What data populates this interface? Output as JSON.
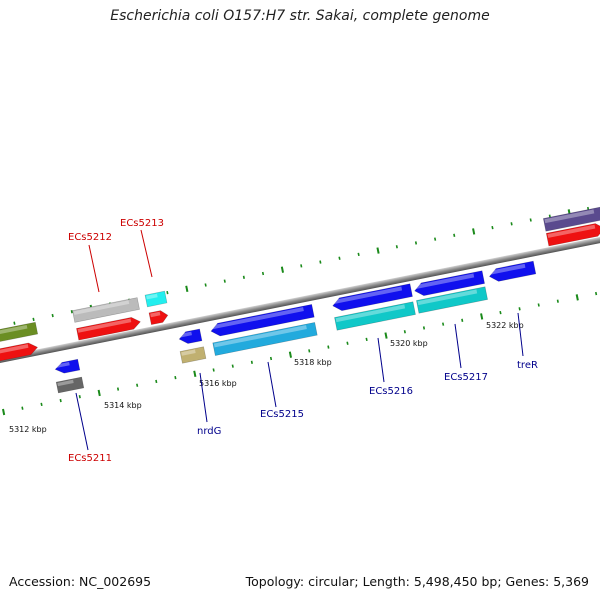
{
  "title": "Escherichia coli O157:H7 str. Sakai, complete genome",
  "footer": {
    "accession": "Accession: NC_002695",
    "topology": "Topology: circular; Length: 5,498,450 bp; Genes: 5,369"
  },
  "ticks": [
    "5312 kbp",
    "5314 kbp",
    "5316 kbp",
    "5318 kbp",
    "5320 kbp",
    "5322 kbp"
  ],
  "genes": [
    {
      "label": "ECs5211",
      "color": "#cc0000"
    },
    {
      "label": "ECs5212",
      "color": "#cc0000"
    },
    {
      "label": "ECs5213",
      "color": "#cc0000"
    },
    {
      "label": "nrdG",
      "color": "#00008b"
    },
    {
      "label": "ECs5215",
      "color": "#00008b"
    },
    {
      "label": "ECs5216",
      "color": "#00008b"
    },
    {
      "label": "ECs5217",
      "color": "#00008b"
    },
    {
      "label": "treR",
      "color": "#00008b"
    }
  ],
  "feature_colors": {
    "cds": "#1010ee",
    "cds_red": "#ee1111",
    "cds_cyan": "#10c8c8",
    "cds_lightblue": "#22aadd",
    "grey": "#bbbbbb",
    "olive": "#6b8e23",
    "khaki": "#c0b070",
    "slate": "#5a4a8e",
    "tick": "#1a8a1a",
    "backbone": "#8a8a8a"
  }
}
